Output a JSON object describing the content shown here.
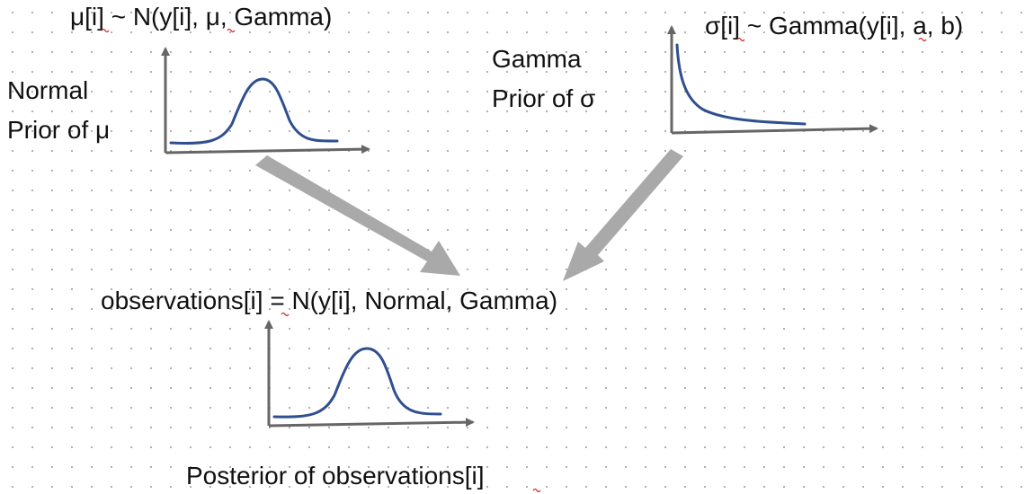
{
  "labels": {
    "mu_formula": "μ[i] ~ N(y[i], μ, Gamma)",
    "sigma_formula": "σ[i] ~ Gamma(y[i], a, b)",
    "normal_prior": [
      "Normal",
      "Prior of μ"
    ],
    "gamma_prior": [
      "Gamma",
      "Prior of σ"
    ],
    "observations": "observations[i] = N(y[i], Normal, Gamma)",
    "posterior": "Posterior of observations[i]"
  },
  "colors": {
    "curve": "#2f4f8f",
    "axis": "#666666",
    "flow_arrow": "#a9a9a9",
    "spellcheck": "#d02020"
  },
  "plots": [
    {
      "id": "normal-prior-plot",
      "shape": "bell"
    },
    {
      "id": "gamma-prior-plot",
      "shape": "decay"
    },
    {
      "id": "posterior-plot",
      "shape": "bell"
    }
  ]
}
